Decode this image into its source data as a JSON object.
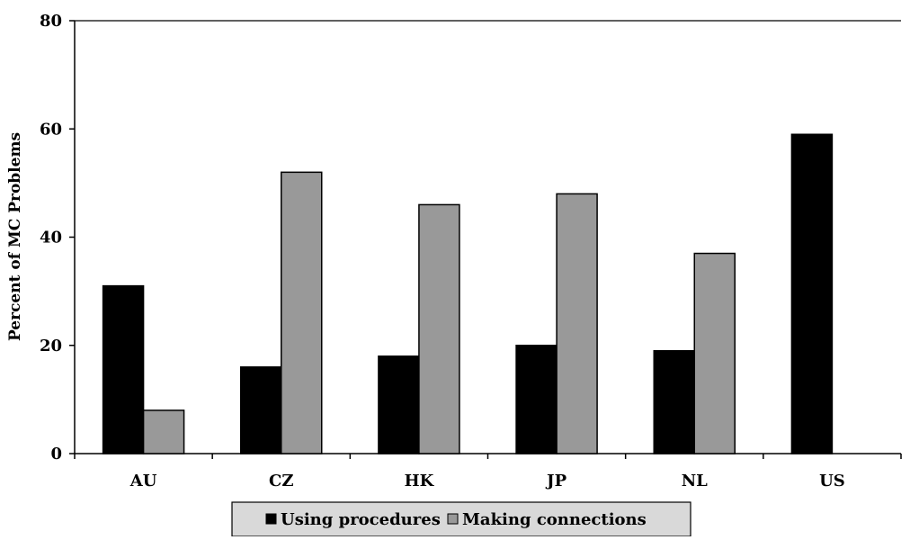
{
  "chart_data": {
    "type": "bar",
    "title": "",
    "xlabel": "",
    "ylabel": "Percent of MC Problems",
    "ylim": [
      0,
      80
    ],
    "yticks": [
      0,
      20,
      40,
      60,
      80
    ],
    "grid": false,
    "legend_position": "bottom-center",
    "categories": [
      "AU",
      "CZ",
      "HK",
      "JP",
      "NL",
      "US"
    ],
    "series": [
      {
        "name": "Using procedures",
        "color": "#000000",
        "values": [
          31,
          16,
          18,
          20,
          19,
          59
        ]
      },
      {
        "name": "Making connections",
        "color": "#999999",
        "values": [
          8,
          52,
          46,
          48,
          37,
          0
        ]
      }
    ]
  }
}
